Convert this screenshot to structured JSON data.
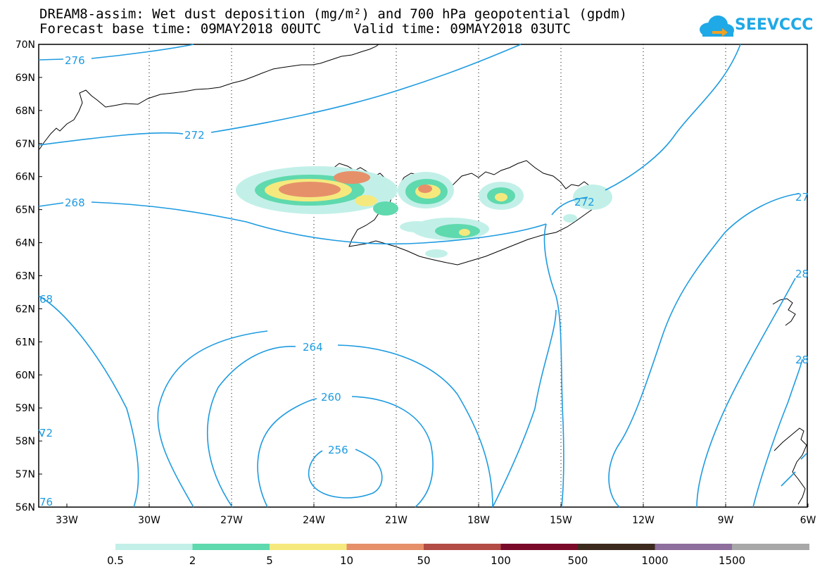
{
  "header": {
    "title_line1": "DREAM8-assim: Wet dust deposition (mg/m²) and 700 hPa geopotential (gpdm)",
    "title_line2": "Forecast base time: 09MAY2018 00UTC    Valid time: 09MAY2018 03UTC"
  },
  "logo": {
    "text": "SEEVCCC",
    "icon": "cloud-arrow-icon",
    "color": "#1fa9e6"
  },
  "map": {
    "lat_labels": [
      "70N",
      "69N",
      "68N",
      "67N",
      "66N",
      "65N",
      "64N",
      "63N",
      "62N",
      "61N",
      "60N",
      "59N",
      "58N",
      "57N",
      "56N"
    ],
    "lon_labels": [
      "33W",
      "30W",
      "27W",
      "24W",
      "21W",
      "18W",
      "15W",
      "12W",
      "9W",
      "6W"
    ],
    "contour_color": "#1e9be0",
    "contour_labels": [
      "276",
      "272",
      "268",
      "264",
      "260",
      "256",
      "272",
      "27",
      "28",
      "28",
      "68",
      "72",
      "76"
    ],
    "region": "Iceland"
  },
  "legend": {
    "labels": [
      "0.5",
      "2",
      "5",
      "10",
      "50",
      "100",
      "500",
      "1000",
      "1500"
    ],
    "colors": [
      "#c2f0e8",
      "#5fd9ae",
      "#f5e97e",
      "#e6906a",
      "#b24c45",
      "#7a0a2a",
      "#3d2a1e",
      "#8e6e9c",
      "#a8a8a8"
    ]
  }
}
